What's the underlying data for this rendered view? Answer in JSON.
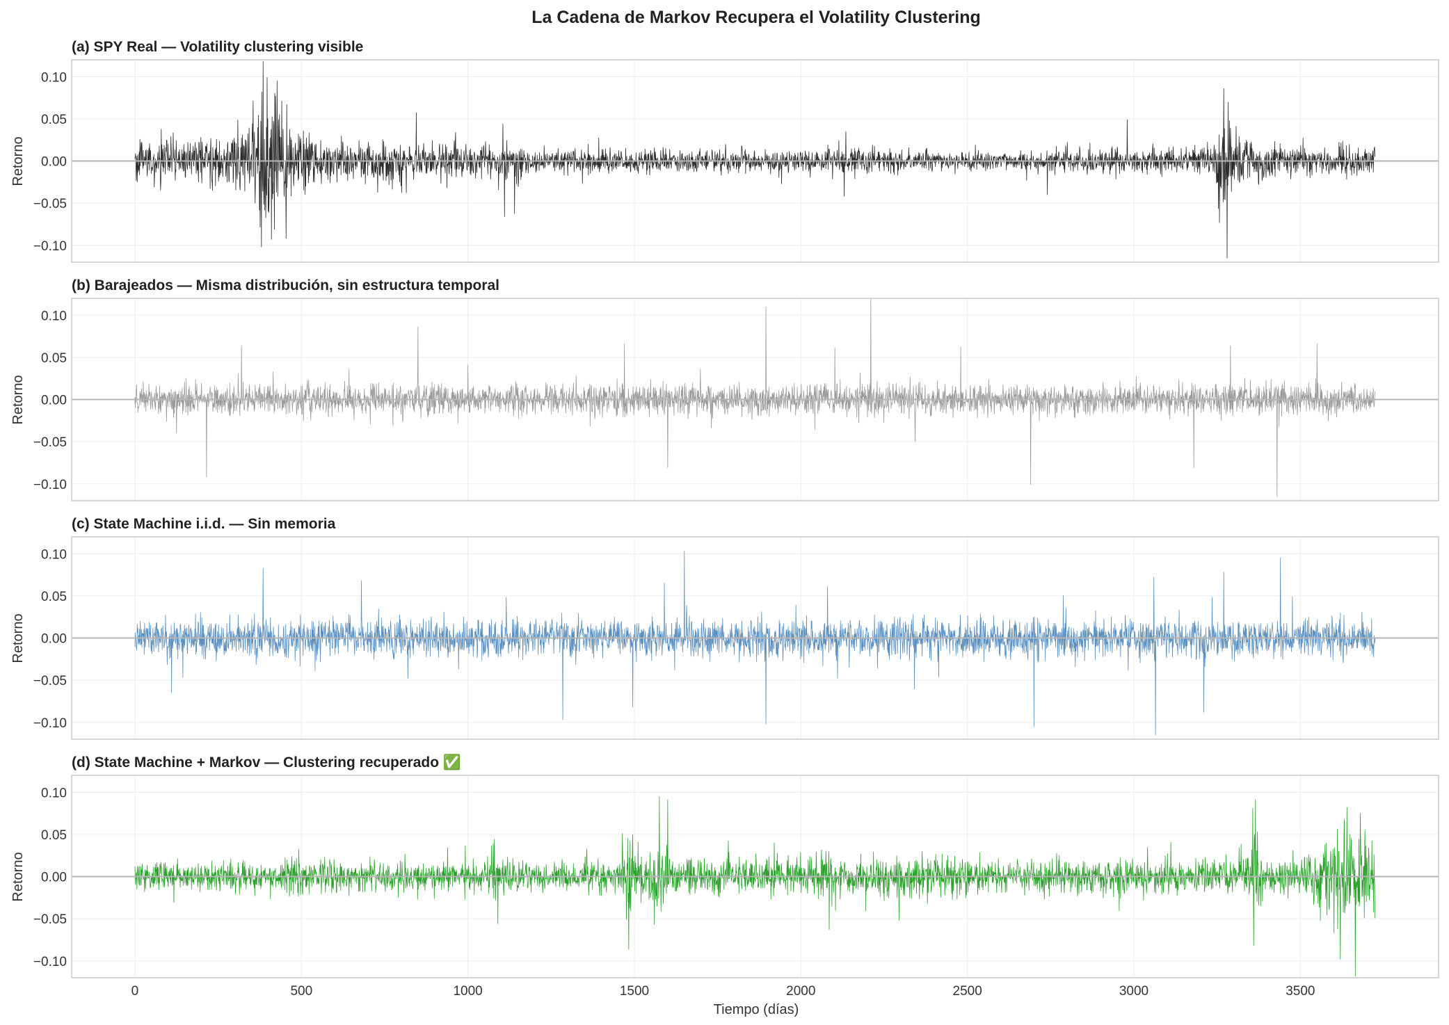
{
  "chart_data": {
    "type": "line",
    "title": "La Cadena de Markov Recupera el Volatility Clustering",
    "xlabel": "Tiempo (días)",
    "ylabel": "Retorno",
    "xlim": [
      -190,
      3915
    ],
    "ylim": [
      -0.12,
      0.12
    ],
    "x_ticks": [
      0,
      500,
      1000,
      1500,
      2000,
      2500,
      3000,
      3500
    ],
    "y_ticks": [
      0.1,
      0.05,
      0.0,
      -0.05,
      -0.1
    ],
    "y_tick_labels": [
      "0.10",
      "0.05",
      "0.00",
      "−0.05",
      "−0.10"
    ],
    "grid": true,
    "n_points": 3725,
    "panels": [
      {
        "name": "spy-real",
        "title": "(a) SPY Real — Volatility clustering visible",
        "color": "#2b2b2b",
        "vol_profile": [
          [
            0,
            0.011
          ],
          [
            260,
            0.013
          ],
          [
            330,
            0.022
          ],
          [
            380,
            0.038
          ],
          [
            420,
            0.04
          ],
          [
            470,
            0.018
          ],
          [
            600,
            0.012
          ],
          [
            760,
            0.011
          ],
          [
            800,
            0.013
          ],
          [
            1000,
            0.009
          ],
          [
            1100,
            0.011
          ],
          [
            1200,
            0.007
          ],
          [
            1500,
            0.008
          ],
          [
            1700,
            0.006
          ],
          [
            1950,
            0.006
          ],
          [
            2100,
            0.007
          ],
          [
            2200,
            0.008
          ],
          [
            2400,
            0.005
          ],
          [
            2700,
            0.005
          ],
          [
            2800,
            0.007
          ],
          [
            3100,
            0.007
          ],
          [
            3230,
            0.009
          ],
          [
            3270,
            0.035
          ],
          [
            3320,
            0.015
          ],
          [
            3400,
            0.01
          ],
          [
            3600,
            0.009
          ],
          [
            3725,
            0.008
          ]
        ],
        "spikes": [
          [
            385,
            0.118
          ],
          [
            380,
            -0.102
          ],
          [
            397,
            0.099
          ],
          [
            410,
            -0.093
          ],
          [
            3270,
            0.086
          ],
          [
            3280,
            -0.115
          ],
          [
            1110,
            -0.066
          ],
          [
            1105,
            0.044
          ],
          [
            2130,
            -0.042
          ],
          [
            2135,
            0.035
          ],
          [
            2980,
            0.049
          ],
          [
            2740,
            -0.04
          ]
        ]
      },
      {
        "name": "barajeados",
        "title": "(b) Barajeados — Misma distribución, sin estructura temporal",
        "color": "#9a9a9a",
        "vol_profile": [
          [
            0,
            0.009
          ],
          [
            3725,
            0.009
          ]
        ],
        "spikes": [
          [
            2210,
            0.12
          ],
          [
            1895,
            0.11
          ],
          [
            850,
            0.086
          ],
          [
            3430,
            -0.115
          ],
          [
            2690,
            -0.101
          ],
          [
            215,
            -0.092
          ],
          [
            1600,
            -0.081
          ],
          [
            3180,
            -0.081
          ],
          [
            3550,
            0.066
          ],
          [
            3290,
            0.064
          ],
          [
            1470,
            0.066
          ],
          [
            320,
            0.064
          ],
          [
            1000,
            0.041
          ],
          [
            2480,
            0.062
          ]
        ]
      },
      {
        "name": "iid",
        "title": "(c) State Machine i.i.d. — Sin memoria",
        "color": "#5a8fbf",
        "vol_profile": [
          [
            0,
            0.011
          ],
          [
            3725,
            0.011
          ]
        ],
        "spikes": [
          [
            1650,
            0.103
          ],
          [
            3440,
            0.095
          ],
          [
            3065,
            -0.115
          ],
          [
            1895,
            -0.102
          ],
          [
            2700,
            -0.105
          ],
          [
            1285,
            -0.097
          ],
          [
            385,
            0.083
          ],
          [
            1590,
            0.065
          ],
          [
            3270,
            0.078
          ],
          [
            3060,
            0.072
          ],
          [
            2080,
            0.061
          ],
          [
            680,
            0.068
          ],
          [
            110,
            -0.065
          ],
          [
            3210,
            -0.088
          ],
          [
            1495,
            -0.082
          ]
        ]
      },
      {
        "name": "markov",
        "title": "(d) State Machine + Markov — Clustering recuperado ✅",
        "color": "#2ca02c",
        "vol_profile": [
          [
            0,
            0.008
          ],
          [
            420,
            0.008
          ],
          [
            470,
            0.014
          ],
          [
            540,
            0.009
          ],
          [
            1040,
            0.008
          ],
          [
            1080,
            0.018
          ],
          [
            1110,
            0.009
          ],
          [
            1450,
            0.009
          ],
          [
            1480,
            0.022
          ],
          [
            1540,
            0.012
          ],
          [
            1570,
            0.022
          ],
          [
            1620,
            0.01
          ],
          [
            2050,
            0.01
          ],
          [
            2075,
            0.02
          ],
          [
            2100,
            0.011
          ],
          [
            2300,
            0.011
          ],
          [
            2400,
            0.013
          ],
          [
            2600,
            0.009
          ],
          [
            3330,
            0.01
          ],
          [
            3355,
            0.03
          ],
          [
            3390,
            0.01
          ],
          [
            3540,
            0.012
          ],
          [
            3580,
            0.028
          ],
          [
            3700,
            0.026
          ],
          [
            3725,
            0.02
          ]
        ],
        "spikes": [
          [
            1090,
            0.091
          ],
          [
            1090,
            -0.056
          ],
          [
            1600,
            0.091
          ],
          [
            1560,
            -0.057
          ],
          [
            3365,
            0.091
          ],
          [
            3360,
            -0.082
          ],
          [
            3665,
            -0.118
          ],
          [
            3640,
            0.082
          ],
          [
            3620,
            -0.098
          ],
          [
            3680,
            0.075
          ],
          [
            2085,
            0.065
          ],
          [
            2085,
            -0.063
          ],
          [
            1495,
            0.05
          ],
          [
            2295,
            -0.052
          ]
        ]
      }
    ]
  }
}
